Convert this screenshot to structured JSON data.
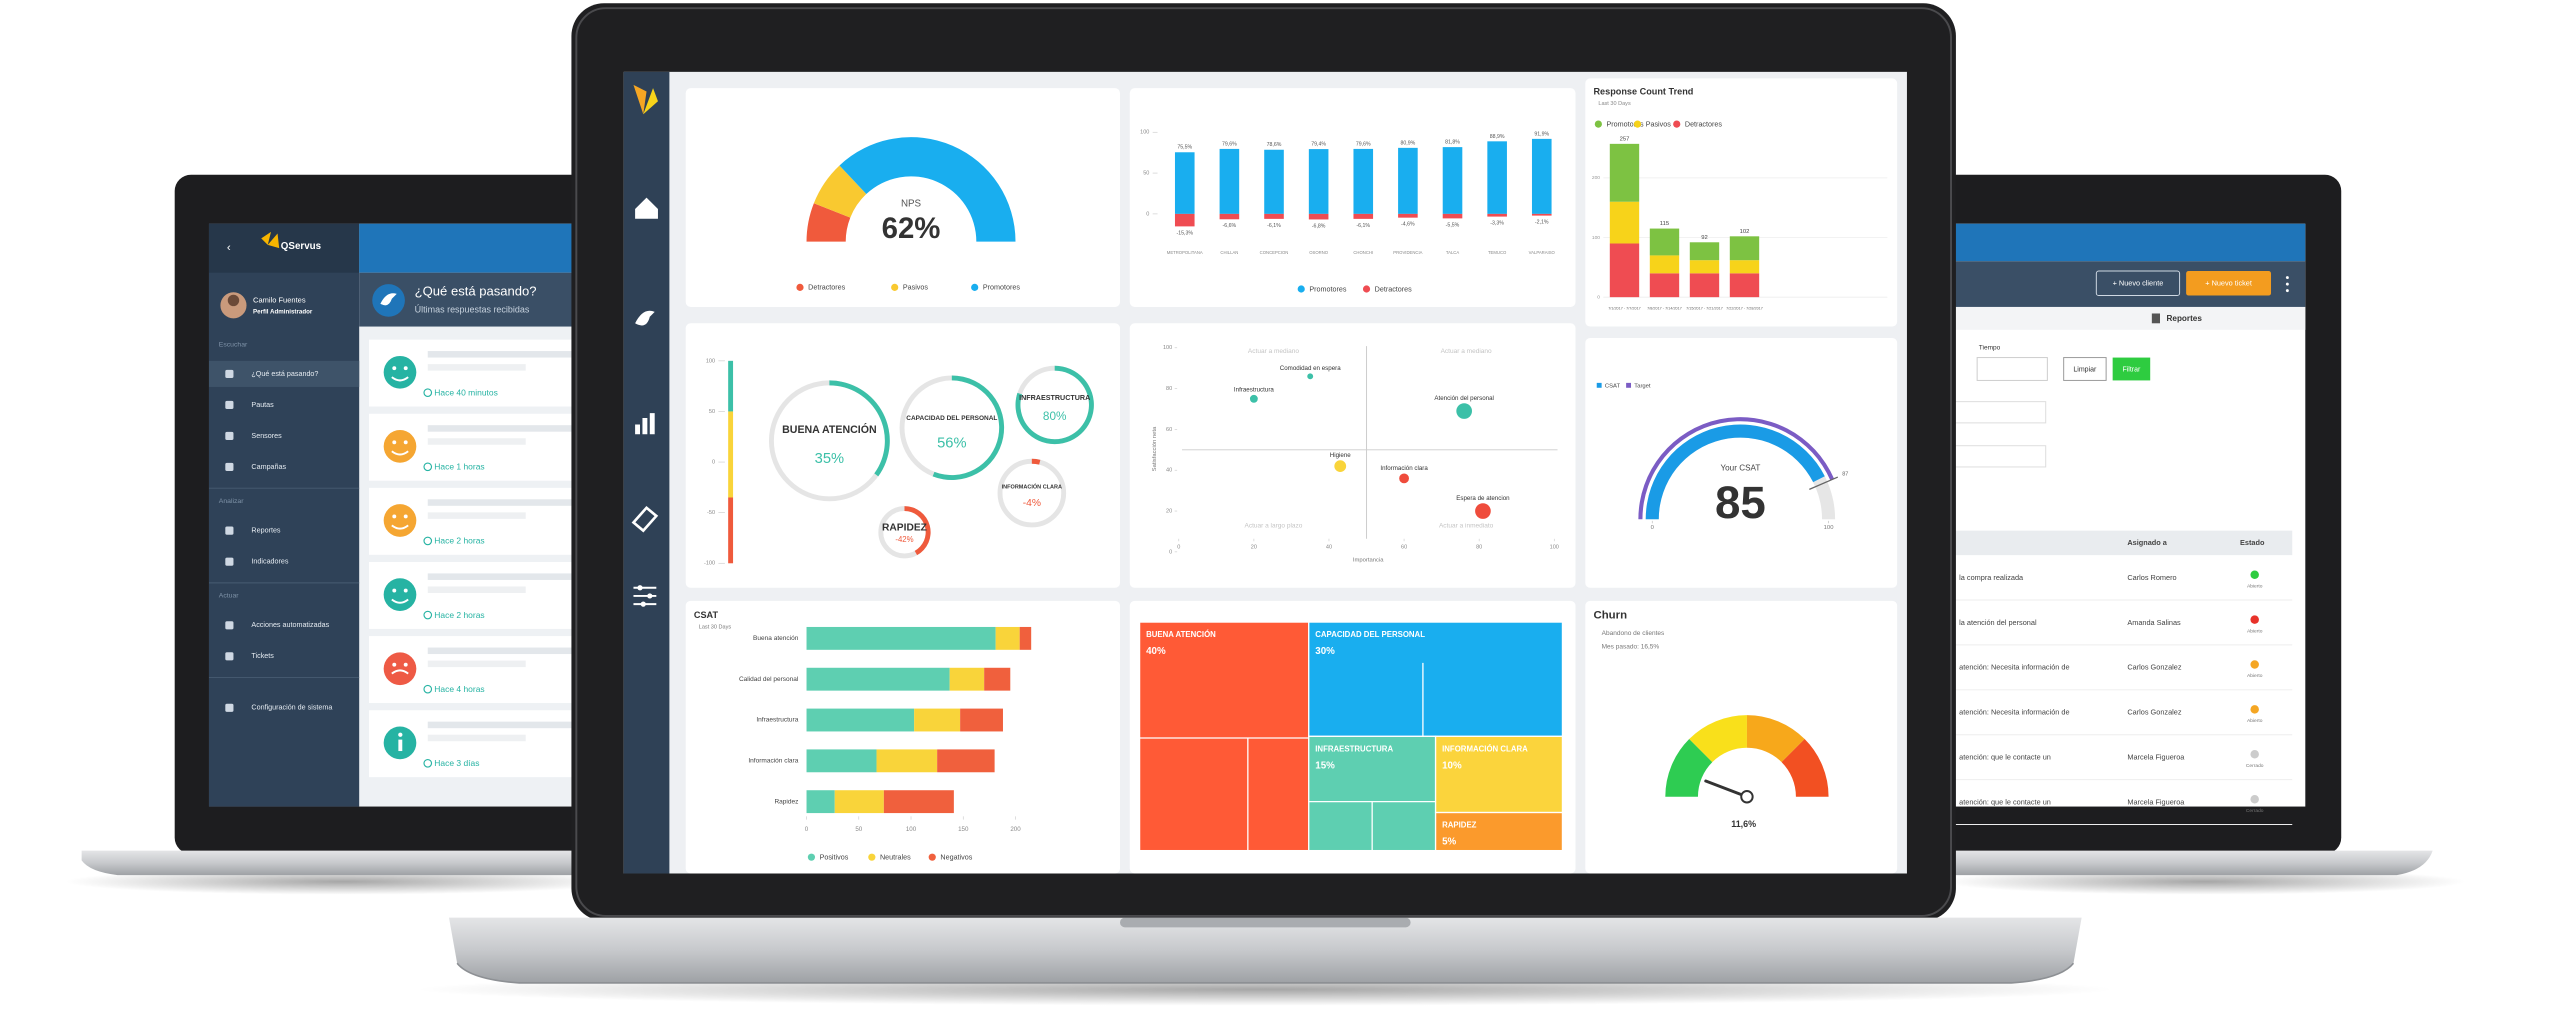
{
  "left_app": {
    "brand": "QServus",
    "user_name": "Camilo Fuentes",
    "user_role": "Perfil Administrador",
    "menu": [
      {
        "section": "Escuchar",
        "items": [
          "¿Qué está pasando?",
          "Pautas",
          "Sensores",
          "Campañas"
        ]
      },
      {
        "section": "Analizar",
        "items": [
          "Reportes",
          "Indicadores"
        ]
      },
      {
        "section": "Actuar",
        "items": [
          "Acciones automatizadas",
          "Tickets"
        ]
      }
    ],
    "settings": "Configuración de sistema",
    "feed_title": "¿Qué está pasando?",
    "feed_subtitle": "Últimas respuestas recibidas",
    "feed": [
      {
        "time": "Hace 40 minutos",
        "color": "#26b3a3"
      },
      {
        "time": "Hace 1 horas",
        "color": "#f5a632"
      },
      {
        "time": "Hace 2 horas",
        "color": "#f5a632"
      },
      {
        "time": "Hace 2 horas",
        "color": "#26b3a3"
      },
      {
        "time": "Hace 4 horas",
        "color": "#ee5a45"
      },
      {
        "time": "Hace 3 días",
        "color": "#26b3a3"
      }
    ]
  },
  "right_app": {
    "buttons": [
      "+ Nuevo cliente",
      "+ Nuevo ticket"
    ],
    "section": "Reportes",
    "filter_label": "Tiempo",
    "filter_buttons": [
      "Limpiar",
      "Filtrar"
    ],
    "table": {
      "columns": [
        "Asignado a",
        "Estado"
      ],
      "rows": [
        [
          "la compra realizada",
          "Carlos Romero",
          "Abierto"
        ],
        [
          "la atención del personal",
          "Amanda Salinas",
          "Abierto"
        ],
        [
          "atención: Necesita información de",
          "Carlos Gonzalez",
          "Abierto"
        ],
        [
          "atención: Necesita información de",
          "Carlos Gonzalez",
          "Abierto"
        ],
        [
          "atención: que le contacte un",
          "Marcela Figueroa",
          "Cerrado"
        ],
        [
          "atención: que le contacte un",
          "Marcela Figueroa",
          "Cerrado"
        ]
      ],
      "status_colors": [
        "#2ecc40",
        "#e8322a",
        "#f5a623",
        "#f5a623",
        "#cccccc",
        "#cccccc"
      ]
    }
  },
  "chart_data": [
    {
      "type": "donut",
      "label": "NPS",
      "value": 62,
      "value_label": "62%",
      "categories": [
        "Detractores",
        "Pasivos",
        "Promotores"
      ],
      "values": [
        12,
        14,
        74
      ],
      "colors": [
        "#f05a3c",
        "#f9c930",
        "#19aeef"
      ]
    },
    {
      "type": "bar",
      "categories": [
        "METROPOLITANA",
        "CHILLAN",
        "CONCEPCION",
        "OSORNO",
        "CHONCHI",
        "PROVIDENCIA",
        "TALCA",
        "TEMUCO",
        "VALPARAISO"
      ],
      "series": [
        {
          "name": "Promotores",
          "color": "#19aeef",
          "values": [
            75.5,
            79.6,
            78.6,
            79.4,
            79.6,
            80.9,
            81.8,
            88.9,
            91.9
          ],
          "value_labels": [
            "75,5%",
            "79,6%",
            "78,6%",
            "79,4%",
            "79,6%",
            "80,9%",
            "81,8%",
            "88,9%",
            "91,9%"
          ]
        },
        {
          "name": "Detractores",
          "color": "#ef4c52",
          "values": [
            -15.3,
            -6.6,
            -6.1,
            -6.8,
            -6.1,
            -4.6,
            -5.5,
            -3.3,
            -2.1
          ],
          "value_labels": [
            "-15,3%",
            "-6,6%",
            "-6,1%",
            "-6,8%",
            "-6,1%",
            "-4,6%",
            "-5,5%",
            "-3,3%",
            "-2,1%"
          ]
        }
      ],
      "ylim": [
        -30,
        100
      ],
      "yticks": [
        0,
        50,
        100
      ]
    },
    {
      "type": "stacked_bar",
      "title": "Response Count Trend",
      "subtitle": "Last 30 Days",
      "categories": [
        "7/1/2017 - 7/7/2017",
        "7/8/2017 - 7/14/2017",
        "7/15/2017 - 7/21/2017",
        "7/22/2017 - 7/28/2017"
      ],
      "series": [
        {
          "name": "Promotores",
          "color": "#7dc242",
          "values": [
            97,
            45,
            30,
            40
          ]
        },
        {
          "name": "Pasivos",
          "color": "#f7d31a",
          "values": [
            70,
            30,
            22,
            22
          ]
        },
        {
          "name": "Detractores",
          "color": "#ef4c52",
          "values": [
            90,
            40,
            40,
            40
          ]
        }
      ],
      "totals": [
        257,
        115,
        92,
        102
      ],
      "ylim": [
        0,
        260
      ],
      "yticks": [
        0,
        100,
        200
      ],
      "grid": true
    },
    {
      "type": "ring",
      "categories": [
        "BUENA ATENCIÓN",
        "CAPACIDAD DEL PERSONAL",
        "INFRAESTRUCTURA",
        "INFORMACIÓN CLARA",
        "RAPIDEZ"
      ],
      "values": [
        35,
        56,
        80,
        -4,
        -42
      ],
      "value_labels": [
        "35%",
        "56%",
        "80%",
        "-4%",
        "-42%"
      ],
      "ylim": [
        -100,
        100
      ],
      "yticks": [
        100,
        50,
        0,
        -50,
        -100
      ],
      "positive_color": "#3cc0a8",
      "negative_color": "#ef5a3c"
    },
    {
      "type": "scatter",
      "xlabel": "Importancia",
      "ylabel": "Satisfacción neta",
      "quadrants": [
        "Actuar a mediano",
        "Actuar a mediano",
        "Actuar a largo plazo",
        "Actuar a inmediato"
      ],
      "labels": [
        "Infraestructura",
        "Comodidad en espera",
        "Atención del personal",
        "Higiene",
        "Información clara",
        "Espera de atencion"
      ],
      "x": [
        20,
        35,
        76,
        43,
        60,
        81
      ],
      "values": [
        75,
        86,
        69,
        42,
        36,
        20
      ],
      "sizes": [
        4,
        3,
        8,
        6,
        5,
        8
      ],
      "colors": [
        "#3cc0a8",
        "#3cc0a8",
        "#3cc0a8",
        "#f9d43a",
        "#ef4c3c",
        "#ef4c3c"
      ],
      "xlim": [
        0,
        100
      ],
      "xticks": [
        0,
        20,
        40,
        60,
        80,
        100
      ],
      "ylim": [
        0,
        100
      ],
      "yticks": [
        0,
        20,
        40,
        60,
        80,
        100
      ]
    },
    {
      "type": "stacked_barh",
      "categories": [
        "Buena atención",
        "Calidad del personal",
        "Infraestructura",
        "Información clara",
        "Rapidez"
      ],
      "series": [
        {
          "name": "Positivos",
          "color": "#5ecfb1",
          "values": [
            181,
            137,
            103,
            67,
            27
          ]
        },
        {
          "name": "Neutrales",
          "color": "#f9d43a",
          "values": [
            23,
            33,
            44,
            58,
            47
          ]
        },
        {
          "name": "Negativos",
          "color": "#f0603d",
          "values": [
            11,
            25,
            41,
            55,
            67
          ]
        }
      ],
      "xlim": [
        0,
        200
      ],
      "xticks": [
        0,
        50,
        100,
        150,
        200
      ]
    },
    {
      "type": "gauge",
      "style": "arc",
      "title": "CSAT",
      "subtitle": "Last 30 Days",
      "legend": [
        {
          "name": "CSAT",
          "color": "#1a9be6"
        },
        {
          "name": "Target",
          "color": "#7b5cc4"
        }
      ],
      "label": "Your CSAT",
      "value": 85,
      "target": 87,
      "ylim": [
        0,
        100
      ],
      "yticks": [
        0,
        100
      ]
    },
    {
      "type": "treemap",
      "categories": [
        "BUENA ATENCIÓN",
        "CAPACIDAD DEL PERSONAL",
        "INFRAESTRUCTURA",
        "INFORMACIÓN CLARA",
        "RAPIDEZ"
      ],
      "values": [
        40,
        30,
        15,
        10,
        5
      ],
      "value_labels": [
        "40%",
        "30%",
        "15%",
        "10%",
        "5%"
      ],
      "colors": [
        "#ff5a36",
        "#19aeef",
        "#5ecfb1",
        "#fbd43c",
        "#fb9a2c"
      ]
    },
    {
      "type": "gauge",
      "style": "bands",
      "title": "Churn",
      "subtitle": "Abandono de clientes",
      "note": "Mes pasado: 16,5%",
      "value": 11.6,
      "value_label": "11,6%",
      "ylim": [
        0,
        100
      ],
      "band_colors": [
        "#2ecc52",
        "#f9e01b",
        "#f7a81b",
        "#f25022"
      ]
    }
  ]
}
